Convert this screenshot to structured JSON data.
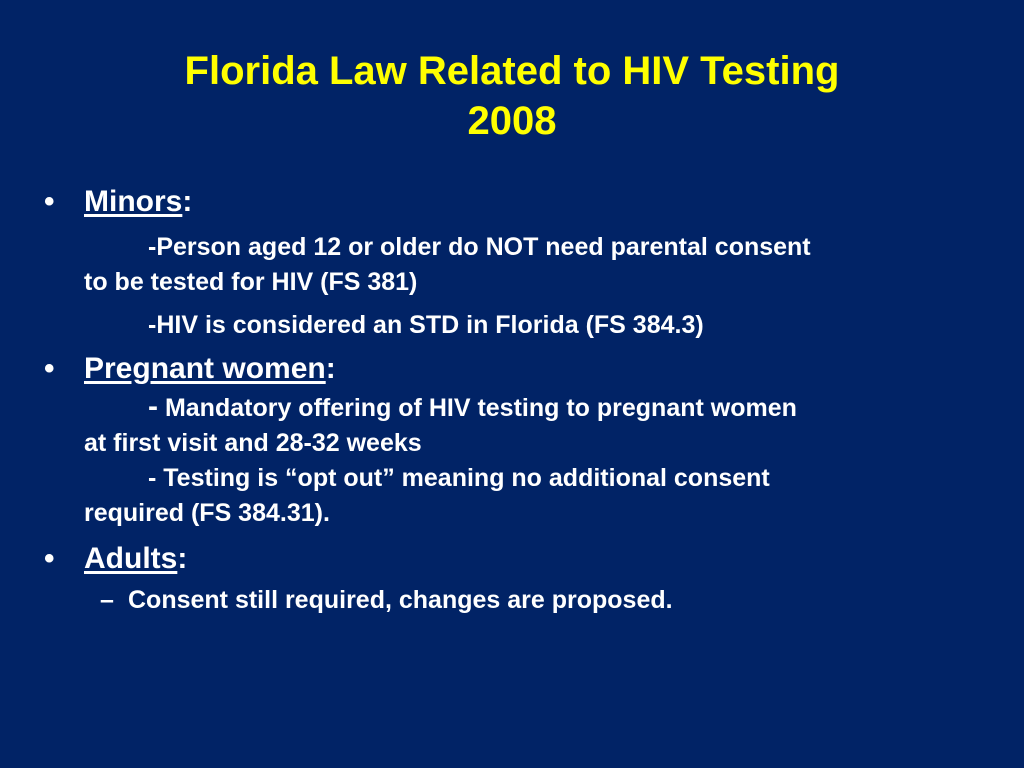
{
  "slide": {
    "title_line1": "Florida Law Related to HIV Testing",
    "title_line2": "2008",
    "bullet_glyph": "•",
    "sub_glyph": "–",
    "minors": {
      "heading": "Minors",
      "colon": ":",
      "point1_line1": "-Person aged 12 or older do NOT need parental consent",
      "point1_line2": "to be tested for HIV (FS 381)",
      "point2": "-HIV is considered an STD in Florida (FS 384.3)"
    },
    "pregnant": {
      "heading": "Pregnant women",
      "colon": ":",
      "point1_dash": "-",
      "point1_line1": " Mandatory offering of HIV testing to pregnant women",
      "point1_line2": "at first visit and 28-32 weeks",
      "point2_line1": "- Testing is “opt out” meaning no additional consent",
      "point2_line2": "required (FS 384.31)."
    },
    "adults": {
      "heading": "Adults",
      "colon": ":",
      "point1": "Consent still required, changes are proposed."
    }
  },
  "colors": {
    "background": "#012366",
    "title": "#ffff00",
    "body_text": "#ffffff"
  }
}
